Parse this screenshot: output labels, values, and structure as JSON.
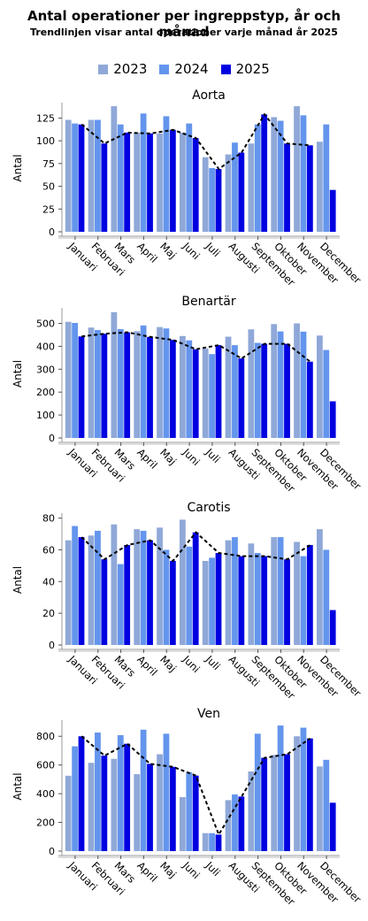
{
  "title": "Antal operationer per ingreppstyp, år och månad",
  "subtitle": "Trendlinjen visar antal operationer varje månad år 2025",
  "legend": [
    {
      "label": "2023",
      "color": "#8fa8d8"
    },
    {
      "label": "2024",
      "color": "#6495ed"
    },
    {
      "label": "2025",
      "color": "#0000e0"
    }
  ],
  "chart_data": [
    {
      "type": "bar",
      "title": "Aorta",
      "ylabel": "Antal",
      "ylim": [
        0,
        140
      ],
      "yticks": [
        0,
        25,
        50,
        75,
        100,
        125
      ],
      "categories": [
        "Januari",
        "Februari",
        "Mars",
        "April",
        "Maj",
        "Juni",
        "Juli",
        "Augusti",
        "September",
        "Oktober",
        "November",
        "December"
      ],
      "series": [
        {
          "name": "2023",
          "values": [
            123,
            123,
            138,
            109,
            108,
            109,
            82,
            85,
            97,
            126,
            138,
            99
          ]
        },
        {
          "name": "2024",
          "values": [
            119,
            123,
            118,
            130,
            127,
            119,
            70,
            98,
            118,
            122,
            128,
            118
          ]
        },
        {
          "name": "2025",
          "values": [
            118,
            97,
            109,
            108,
            112,
            103,
            69,
            87,
            129,
            97,
            95,
            46
          ]
        }
      ],
      "trendline": {
        "series": "2025",
        "values": [
          118,
          97,
          109,
          108,
          112,
          103,
          69,
          87,
          129,
          97,
          95
        ]
      }
    },
    {
      "type": "bar",
      "title": "Benartär",
      "ylabel": "Antal",
      "ylim": [
        0,
        560
      ],
      "yticks": [
        0,
        100,
        200,
        300,
        400,
        500
      ],
      "categories": [
        "Januari",
        "Februari",
        "Mars",
        "April",
        "Maj",
        "Juni",
        "Juli",
        "Augusti",
        "September",
        "Oktober",
        "November",
        "December"
      ],
      "series": [
        {
          "name": "2023",
          "values": [
            507,
            482,
            549,
            466,
            484,
            445,
            390,
            442,
            474,
            497,
            500,
            447
          ]
        },
        {
          "name": "2024",
          "values": [
            502,
            471,
            475,
            491,
            478,
            426,
            366,
            405,
            415,
            465,
            464,
            384
          ]
        },
        {
          "name": "2025",
          "values": [
            443,
            455,
            461,
            441,
            428,
            387,
            405,
            347,
            411,
            411,
            333,
            160
          ]
        }
      ],
      "trendline": {
        "series": "2025",
        "values": [
          443,
          455,
          461,
          441,
          428,
          387,
          405,
          347,
          411,
          411,
          333
        ]
      }
    },
    {
      "type": "bar",
      "title": "Carotis",
      "ylabel": "Antal",
      "ylim": [
        0,
        82
      ],
      "yticks": [
        0,
        20,
        40,
        60,
        80
      ],
      "categories": [
        "Januari",
        "Februari",
        "Mars",
        "April",
        "Maj",
        "Juni",
        "Juli",
        "Augusti",
        "September",
        "Oktober",
        "November",
        "December"
      ],
      "series": [
        {
          "name": "2023",
          "values": [
            66,
            69,
            76,
            73,
            74,
            79,
            53,
            66,
            64,
            68,
            65,
            73
          ]
        },
        {
          "name": "2024",
          "values": [
            75,
            72,
            51,
            72,
            60,
            62,
            55,
            68,
            58,
            68,
            56,
            60
          ]
        },
        {
          "name": "2025",
          "values": [
            68,
            54,
            63,
            66,
            53,
            71,
            58,
            56,
            56,
            54,
            63,
            22
          ]
        }
      ],
      "trendline": {
        "series": "2025",
        "values": [
          68,
          54,
          63,
          66,
          53,
          71,
          58,
          56,
          56,
          54,
          63
        ]
      }
    },
    {
      "type": "bar",
      "title": "Ven",
      "ylabel": "Antal",
      "ylim": [
        0,
        900
      ],
      "yticks": [
        0,
        200,
        400,
        600,
        800
      ],
      "categories": [
        "Januari",
        "Februari",
        "Mars",
        "April",
        "Maj",
        "Juni",
        "Juli",
        "Augusti",
        "September",
        "Oktober",
        "November",
        "December"
      ],
      "series": [
        {
          "name": "2023",
          "values": [
            525,
            615,
            643,
            536,
            675,
            376,
            125,
            355,
            555,
            670,
            800,
            590
          ]
        },
        {
          "name": "2024",
          "values": [
            730,
            826,
            808,
            846,
            818,
            550,
            125,
            395,
            818,
            875,
            860,
            636
          ]
        },
        {
          "name": "2025",
          "values": [
            800,
            665,
            748,
            608,
            587,
            526,
            115,
            380,
            650,
            675,
            785,
            337
          ]
        }
      ],
      "trendline": {
        "series": "2025",
        "values": [
          800,
          665,
          748,
          608,
          587,
          526,
          115,
          380,
          650,
          675,
          785
        ]
      }
    }
  ]
}
